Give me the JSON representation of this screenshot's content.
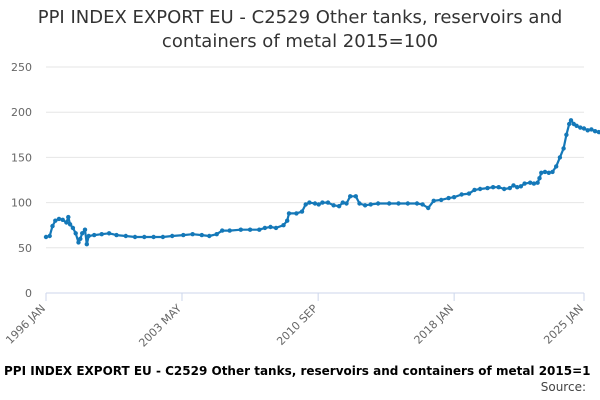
{
  "title_lines": [
    "PPI INDEX EXPORT EU - C2529 Other tanks, reservoirs and",
    "containers of metal 2015=100"
  ],
  "footer": {
    "series_title": "PPI INDEX EXPORT EU - C2529 Other tanks, reservoirs and containers of metal 2015=1",
    "source": "Source:"
  },
  "colors": {
    "line": "#1478b8",
    "grid": "#e6e6e6",
    "axis": "#ccd6eb"
  },
  "chart_data": {
    "type": "line",
    "title": "PPI INDEX EXPORT EU - C2529 Other tanks, reservoirs and containers of metal 2015=100",
    "xlabel": "",
    "ylabel": "",
    "ylim": [
      0,
      250
    ],
    "yticks": [
      0,
      50,
      100,
      150,
      200,
      250
    ],
    "xlim": [
      1996.0,
      2025.0
    ],
    "xticks": [
      {
        "label": "1996 JAN",
        "x": 1996.0
      },
      {
        "label": "2003 MAY",
        "x": 2003.33
      },
      {
        "label": "2010 SEP",
        "x": 2010.67
      },
      {
        "label": "2018 JAN",
        "x": 2018.0
      },
      {
        "label": "2025 JAN",
        "x": 2025.0
      }
    ],
    "grid": true,
    "legend": "none",
    "series": [
      {
        "name": "PPI INDEX EXPORT EU - C2529 Other tanks, reservoirs and containers of metal 2015=100",
        "points": [
          [
            1996.0,
            62
          ],
          [
            1996.2,
            63
          ],
          [
            1996.35,
            74
          ],
          [
            1996.5,
            80
          ],
          [
            1996.7,
            82
          ],
          [
            1996.9,
            81
          ],
          [
            1997.1,
            78
          ],
          [
            1997.2,
            84
          ],
          [
            1997.3,
            76
          ],
          [
            1997.45,
            72
          ],
          [
            1997.6,
            66
          ],
          [
            1997.75,
            56
          ],
          [
            1997.85,
            60
          ],
          [
            1997.95,
            66
          ],
          [
            1998.1,
            70
          ],
          [
            1998.2,
            54
          ],
          [
            1998.3,
            63
          ],
          [
            1998.6,
            64
          ],
          [
            1999.0,
            65
          ],
          [
            1999.4,
            66
          ],
          [
            1999.8,
            64
          ],
          [
            2000.3,
            63
          ],
          [
            2000.8,
            62
          ],
          [
            2001.3,
            62
          ],
          [
            2001.8,
            62
          ],
          [
            2002.3,
            62
          ],
          [
            2002.8,
            63
          ],
          [
            2003.4,
            64
          ],
          [
            2003.9,
            65
          ],
          [
            2004.4,
            64
          ],
          [
            2004.8,
            63
          ],
          [
            2005.2,
            65
          ],
          [
            2005.5,
            69
          ],
          [
            2005.9,
            69
          ],
          [
            2006.5,
            70
          ],
          [
            2007.0,
            70
          ],
          [
            2007.5,
            70
          ],
          [
            2007.8,
            72
          ],
          [
            2008.1,
            73
          ],
          [
            2008.4,
            72
          ],
          [
            2008.8,
            75
          ],
          [
            2009.0,
            80
          ],
          [
            2009.1,
            88
          ],
          [
            2009.5,
            88
          ],
          [
            2009.8,
            90
          ],
          [
            2010.0,
            98
          ],
          [
            2010.2,
            100
          ],
          [
            2010.5,
            99
          ],
          [
            2010.7,
            98
          ],
          [
            2010.9,
            100
          ],
          [
            2011.2,
            100
          ],
          [
            2011.5,
            97
          ],
          [
            2011.8,
            96
          ],
          [
            2012.0,
            100
          ],
          [
            2012.2,
            99
          ],
          [
            2012.4,
            107
          ],
          [
            2012.7,
            107
          ],
          [
            2012.9,
            99
          ],
          [
            2013.2,
            97
          ],
          [
            2013.5,
            98
          ],
          [
            2013.9,
            99
          ],
          [
            2014.5,
            99
          ],
          [
            2015.0,
            99
          ],
          [
            2015.5,
            99
          ],
          [
            2016.0,
            99
          ],
          [
            2016.3,
            98
          ],
          [
            2016.6,
            94
          ],
          [
            2016.9,
            102
          ],
          [
            2017.3,
            103
          ],
          [
            2017.7,
            105
          ],
          [
            2018.0,
            106
          ],
          [
            2018.4,
            109
          ],
          [
            2018.8,
            110
          ],
          [
            2019.1,
            114
          ],
          [
            2019.4,
            115
          ],
          [
            2019.8,
            116
          ],
          [
            2020.1,
            117
          ],
          [
            2020.4,
            117
          ],
          [
            2020.7,
            115
          ],
          [
            2021.0,
            116
          ],
          [
            2021.2,
            119
          ],
          [
            2021.4,
            117
          ],
          [
            2021.6,
            118
          ],
          [
            2021.8,
            121
          ],
          [
            2022.1,
            122
          ],
          [
            2022.3,
            121
          ],
          [
            2022.5,
            122
          ],
          [
            2022.6,
            127
          ],
          [
            2022.7,
            133
          ],
          [
            2022.9,
            134
          ],
          [
            2023.1,
            133
          ],
          [
            2023.3,
            134
          ],
          [
            2023.5,
            140
          ],
          [
            2023.7,
            150
          ],
          [
            2023.9,
            160
          ],
          [
            2024.05,
            175
          ],
          [
            2024.2,
            187
          ],
          [
            2024.3,
            191
          ],
          [
            2024.45,
            187
          ],
          [
            2024.6,
            185
          ],
          [
            2024.8,
            183
          ],
          [
            2025.0,
            182
          ],
          [
            2025.2,
            180
          ],
          [
            2025.4,
            181
          ],
          [
            2025.6,
            179
          ],
          [
            2025.8,
            178
          ],
          [
            2025.95,
            177
          ]
        ]
      }
    ]
  }
}
